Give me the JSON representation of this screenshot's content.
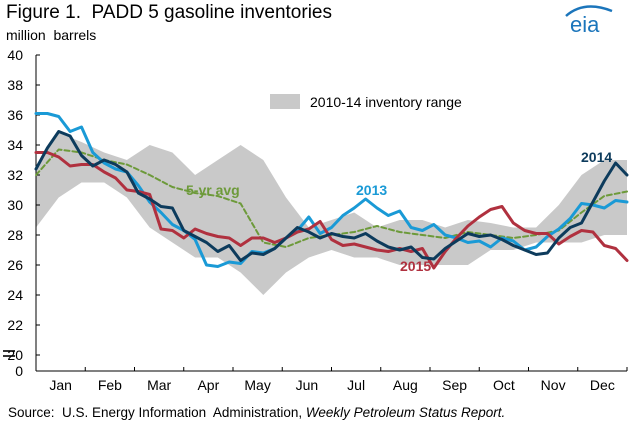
{
  "header": {
    "title": "Figure 1.  PADD 5 gasoline inventories",
    "subtitle": "million  barrels",
    "logo_text": "eia"
  },
  "source": {
    "prefix": "Source:  U.S. Energy Information  Administration, ",
    "report": "Weekly Petroleum Status Report."
  },
  "colors": {
    "range": "#c9c9c9",
    "s2013": "#1a9ad6",
    "s2014": "#0d3b5c",
    "s2015": "#b0313f",
    "avg": "#6d9a3a",
    "logo": "#1b75bb"
  },
  "chart_data": {
    "type": "line",
    "title": "Figure 1.  PADD 5 gasoline inventories",
    "ylabel": "million  barrels",
    "ylim": [
      0,
      40
    ],
    "y_break": true,
    "y_ticks": [
      "0",
      "20",
      "22",
      "24",
      "26",
      "28",
      "30",
      "32",
      "34",
      "36",
      "38",
      "40"
    ],
    "x_ticks": [
      "Jan",
      "Feb",
      "Mar",
      "Apr",
      "May",
      "Jun",
      "Jul",
      "Aug",
      "Sep",
      "Oct",
      "Nov",
      "Dec"
    ],
    "x_unit": "week of year",
    "grid": false,
    "legend": {
      "range_label": "2010-14  inventory range",
      "placement": "top-center"
    },
    "range": {
      "name": "2010-14  inventory range",
      "x": [
        1,
        3,
        5,
        7,
        9,
        11,
        13,
        15,
        17,
        19,
        21,
        23,
        25,
        27,
        29,
        31,
        33,
        35,
        37,
        39,
        41,
        43,
        45,
        47,
        49,
        51,
        53
      ],
      "upper": [
        32.5,
        34.8,
        34.2,
        33.5,
        33.0,
        34.0,
        33.5,
        32.0,
        33.0,
        34.0,
        33.0,
        30.5,
        28.5,
        29.0,
        29.5,
        28.5,
        29.0,
        29.0,
        28.5,
        29.0,
        28.8,
        28.5,
        28.5,
        30.0,
        32.0,
        33.0,
        33.0
      ],
      "lower": [
        28.5,
        30.5,
        31.5,
        31.5,
        30.5,
        28.5,
        27.5,
        26.5,
        26.5,
        25.5,
        24.0,
        25.5,
        26.5,
        27.0,
        26.5,
        26.5,
        26.0,
        26.0,
        26.0,
        26.0,
        27.0,
        27.0,
        27.5,
        27.5,
        27.5,
        28.0,
        28.0
      ]
    },
    "series": [
      {
        "name": "5-yr avg",
        "x": [
          1,
          3,
          5,
          7,
          9,
          11,
          13,
          15,
          17,
          19,
          21,
          23,
          25,
          27,
          29,
          31,
          33,
          35,
          37,
          39,
          41,
          43,
          45,
          47,
          49,
          51,
          53
        ],
        "values": [
          32.0,
          33.7,
          33.5,
          33.0,
          32.7,
          32.0,
          31.2,
          30.8,
          30.6,
          30.1,
          27.5,
          27.2,
          27.8,
          28.0,
          28.2,
          28.6,
          28.2,
          28.0,
          27.8,
          28.2,
          28.0,
          27.8,
          28.0,
          28.3,
          29.5,
          30.6,
          30.9
        ]
      },
      {
        "name": "2013",
        "x": [
          1,
          2,
          3,
          4,
          5,
          6,
          7,
          8,
          9,
          10,
          11,
          12,
          13,
          14,
          15,
          16,
          17,
          18,
          19,
          20,
          21,
          22,
          23,
          24,
          25,
          26,
          27,
          28,
          29,
          30,
          31,
          32,
          33,
          34,
          35,
          36,
          37,
          38,
          39,
          40,
          41,
          42,
          43,
          44,
          45,
          46,
          47,
          48,
          49,
          50,
          51,
          52,
          53
        ],
        "values": [
          36.1,
          36.1,
          35.9,
          34.9,
          35.2,
          33.5,
          32.8,
          32.4,
          32.2,
          31.3,
          30.2,
          29.5,
          28.7,
          28.3,
          27.7,
          26.0,
          25.9,
          26.2,
          26.1,
          26.9,
          26.8,
          27.1,
          27.8,
          28.3,
          29.2,
          28.1,
          28.5,
          29.3,
          29.8,
          30.4,
          29.8,
          29.3,
          29.6,
          28.5,
          28.3,
          28.7,
          28.0,
          27.8,
          27.5,
          27.6,
          27.2,
          27.8,
          27.6,
          27.0,
          27.2,
          27.9,
          28.4,
          29.1,
          30.1,
          30.0,
          29.8,
          30.3,
          30.2
        ]
      },
      {
        "name": "2014",
        "x": [
          1,
          2,
          3,
          4,
          5,
          6,
          7,
          8,
          9,
          10,
          11,
          12,
          13,
          14,
          15,
          16,
          17,
          18,
          19,
          20,
          21,
          22,
          23,
          24,
          25,
          26,
          27,
          28,
          29,
          30,
          31,
          32,
          33,
          34,
          35,
          36,
          37,
          38,
          39,
          40,
          41,
          42,
          43,
          44,
          45,
          46,
          47,
          48,
          49,
          50,
          51,
          52,
          53
        ],
        "values": [
          32.4,
          33.8,
          34.9,
          34.6,
          33.3,
          32.6,
          33.0,
          32.7,
          32.2,
          30.8,
          30.4,
          29.9,
          29.8,
          28.3,
          27.9,
          27.5,
          26.9,
          27.3,
          26.3,
          26.8,
          26.7,
          27.1,
          27.8,
          28.5,
          28.2,
          27.8,
          28.1,
          27.9,
          27.8,
          28.1,
          27.6,
          27.2,
          27.0,
          27.2,
          26.5,
          26.4,
          27.1,
          27.6,
          28.1,
          27.9,
          28.0,
          27.7,
          27.3,
          27.0,
          26.7,
          26.8,
          27.8,
          28.5,
          28.8,
          30.2,
          31.6,
          32.8,
          32.0
        ]
      },
      {
        "name": "2015",
        "x": [
          1,
          2,
          3,
          4,
          5,
          6,
          7,
          8,
          9,
          10,
          11,
          12,
          13,
          14,
          15,
          16,
          17,
          18,
          19,
          20,
          21,
          22,
          23,
          24,
          25,
          26,
          27,
          28,
          29,
          30,
          31,
          32,
          33,
          34,
          35,
          36,
          37,
          38,
          39,
          40,
          41,
          42,
          43,
          44,
          45,
          46,
          47,
          48,
          49,
          50,
          51,
          52,
          53
        ],
        "values": [
          33.5,
          33.5,
          33.2,
          32.6,
          32.7,
          32.7,
          32.2,
          31.8,
          31.0,
          30.9,
          30.7,
          28.4,
          28.3,
          27.8,
          28.4,
          28.1,
          27.9,
          27.8,
          27.3,
          27.8,
          27.8,
          27.5,
          27.8,
          28.2,
          28.4,
          28.9,
          27.7,
          27.3,
          27.4,
          27.2,
          27.0,
          26.9,
          27.1,
          26.9,
          27.1,
          25.8,
          26.9,
          27.8,
          28.6,
          29.2,
          29.7,
          29.9,
          28.8,
          28.3,
          28.1,
          28.1,
          27.4,
          27.9,
          28.3,
          28.2,
          27.3,
          27.1,
          26.3
        ]
      }
    ],
    "annotations": [
      {
        "text": "5-yr avg",
        "series": "5-yr avg"
      },
      {
        "text": "2013",
        "series": "2013"
      },
      {
        "text": "2014",
        "series": "2014"
      },
      {
        "text": "2015",
        "series": "2015"
      }
    ]
  }
}
